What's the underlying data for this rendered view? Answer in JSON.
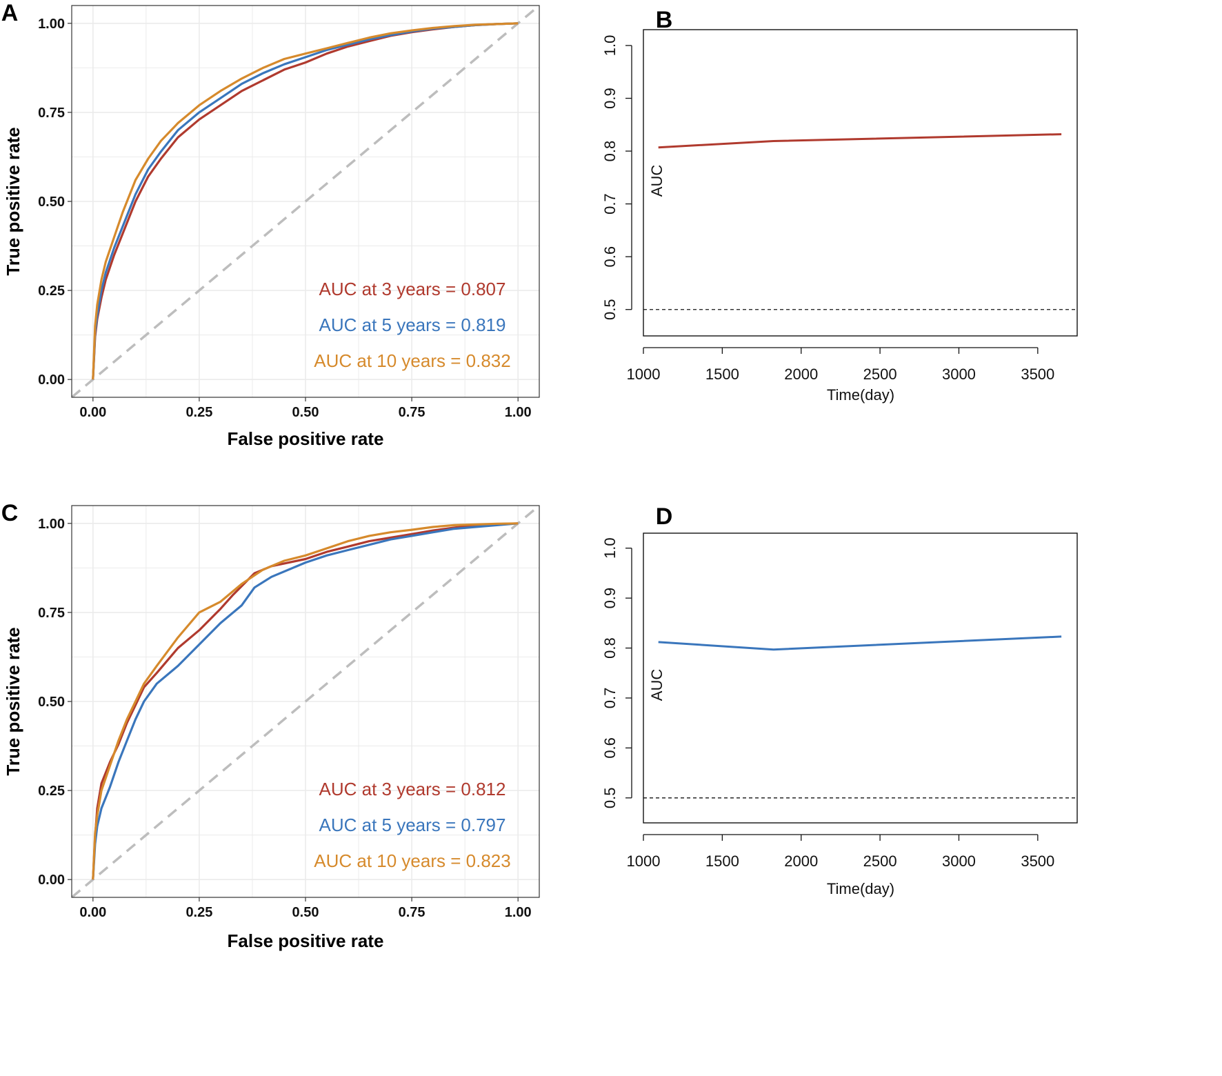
{
  "colors": {
    "y3": "#b03a2e",
    "y5": "#3a76bc",
    "y10": "#d68a2c",
    "diag": "#bdbdbd",
    "grid": "#ebebeb"
  },
  "chart_data": [
    {
      "panel": "A",
      "type": "line",
      "subtype": "roc",
      "xlabel": "False positive rate",
      "ylabel": "True positive rate",
      "xlim": [
        0,
        1
      ],
      "ylim": [
        0,
        1
      ],
      "x_ticks": [
        "0.00",
        "0.25",
        "0.50",
        "0.75",
        "1.00"
      ],
      "y_ticks": [
        "0.00",
        "0.25",
        "0.50",
        "0.75",
        "1.00"
      ],
      "grid": true,
      "reference_line": "diagonal",
      "series": [
        {
          "name": "AUC at 3 years = 0.807",
          "key": "y3",
          "x": [
            0,
            0.005,
            0.01,
            0.02,
            0.03,
            0.05,
            0.07,
            0.1,
            0.13,
            0.16,
            0.2,
            0.25,
            0.3,
            0.35,
            0.4,
            0.45,
            0.5,
            0.55,
            0.6,
            0.65,
            0.7,
            0.75,
            0.8,
            0.85,
            0.9,
            0.95,
            1
          ],
          "y": [
            0,
            0.12,
            0.17,
            0.23,
            0.28,
            0.35,
            0.41,
            0.5,
            0.57,
            0.62,
            0.68,
            0.73,
            0.77,
            0.81,
            0.84,
            0.87,
            0.89,
            0.915,
            0.935,
            0.95,
            0.965,
            0.975,
            0.983,
            0.99,
            0.995,
            0.998,
            1
          ]
        },
        {
          "name": "AUC at 5 years = 0.819",
          "key": "y5",
          "x": [
            0,
            0.005,
            0.01,
            0.02,
            0.03,
            0.05,
            0.07,
            0.1,
            0.13,
            0.16,
            0.2,
            0.25,
            0.3,
            0.35,
            0.4,
            0.45,
            0.5,
            0.55,
            0.6,
            0.65,
            0.7,
            0.75,
            0.8,
            0.85,
            0.9,
            0.95,
            1
          ],
          "y": [
            0,
            0.13,
            0.18,
            0.25,
            0.3,
            0.37,
            0.43,
            0.52,
            0.59,
            0.64,
            0.7,
            0.75,
            0.79,
            0.83,
            0.86,
            0.885,
            0.905,
            0.925,
            0.94,
            0.955,
            0.967,
            0.977,
            0.985,
            0.99,
            0.995,
            0.998,
            1
          ]
        },
        {
          "name": "AUC at 10 years = 0.832",
          "key": "y10",
          "x": [
            0,
            0.005,
            0.01,
            0.02,
            0.03,
            0.05,
            0.07,
            0.1,
            0.13,
            0.16,
            0.2,
            0.25,
            0.3,
            0.35,
            0.4,
            0.45,
            0.5,
            0.55,
            0.6,
            0.65,
            0.7,
            0.75,
            0.8,
            0.85,
            0.9,
            0.95,
            1
          ],
          "y": [
            0,
            0.15,
            0.21,
            0.28,
            0.33,
            0.4,
            0.47,
            0.56,
            0.62,
            0.67,
            0.72,
            0.77,
            0.81,
            0.845,
            0.875,
            0.9,
            0.915,
            0.93,
            0.945,
            0.96,
            0.972,
            0.98,
            0.987,
            0.992,
            0.996,
            0.998,
            1
          ]
        }
      ]
    },
    {
      "panel": "B",
      "type": "line",
      "xlabel": "Time(day)",
      "ylabel": "AUC",
      "xlim": [
        1000,
        3700
      ],
      "ylim": [
        0.45,
        1.03
      ],
      "x_ticks": [
        "1000",
        "1500",
        "2000",
        "2500",
        "3000",
        "3500"
      ],
      "y_ticks": [
        "0.5",
        "0.6",
        "0.7",
        "0.8",
        "0.9",
        "1.0"
      ],
      "reference_line": 0.5,
      "series": [
        {
          "name": "AUC",
          "key": "y3",
          "x": [
            1095,
            1825,
            3650
          ],
          "y": [
            0.807,
            0.819,
            0.832
          ]
        }
      ]
    },
    {
      "panel": "C",
      "type": "line",
      "subtype": "roc",
      "xlabel": "False positive rate",
      "ylabel": "True positive rate",
      "xlim": [
        0,
        1
      ],
      "ylim": [
        0,
        1
      ],
      "x_ticks": [
        "0.00",
        "0.25",
        "0.50",
        "0.75",
        "1.00"
      ],
      "y_ticks": [
        "0.00",
        "0.25",
        "0.50",
        "0.75",
        "1.00"
      ],
      "grid": true,
      "reference_line": "diagonal",
      "series": [
        {
          "name": "AUC at 3 years = 0.812",
          "key": "y3",
          "x": [
            0,
            0.005,
            0.01,
            0.02,
            0.04,
            0.06,
            0.08,
            0.1,
            0.12,
            0.15,
            0.2,
            0.25,
            0.3,
            0.33,
            0.38,
            0.42,
            0.5,
            0.55,
            0.6,
            0.65,
            0.7,
            0.75,
            0.8,
            0.85,
            0.9,
            0.95,
            1
          ],
          "y": [
            0,
            0.12,
            0.2,
            0.27,
            0.33,
            0.38,
            0.44,
            0.49,
            0.54,
            0.58,
            0.65,
            0.7,
            0.76,
            0.8,
            0.86,
            0.88,
            0.9,
            0.92,
            0.935,
            0.95,
            0.96,
            0.97,
            0.98,
            0.988,
            0.995,
            0.998,
            1
          ]
        },
        {
          "name": "AUC at 5 years = 0.797",
          "key": "y5",
          "x": [
            0,
            0.005,
            0.01,
            0.02,
            0.04,
            0.06,
            0.08,
            0.1,
            0.12,
            0.15,
            0.2,
            0.25,
            0.3,
            0.35,
            0.38,
            0.42,
            0.5,
            0.55,
            0.6,
            0.65,
            0.7,
            0.75,
            0.8,
            0.85,
            0.9,
            0.95,
            1
          ],
          "y": [
            0,
            0.1,
            0.15,
            0.2,
            0.26,
            0.33,
            0.39,
            0.45,
            0.5,
            0.55,
            0.6,
            0.66,
            0.72,
            0.77,
            0.82,
            0.85,
            0.89,
            0.91,
            0.925,
            0.94,
            0.955,
            0.965,
            0.975,
            0.985,
            0.99,
            0.995,
            1
          ]
        },
        {
          "name": "AUC at 10 years = 0.823",
          "key": "y10",
          "x": [
            0,
            0.005,
            0.01,
            0.02,
            0.04,
            0.06,
            0.08,
            0.1,
            0.12,
            0.15,
            0.2,
            0.25,
            0.3,
            0.35,
            0.4,
            0.45,
            0.5,
            0.55,
            0.6,
            0.65,
            0.7,
            0.75,
            0.8,
            0.85,
            0.9,
            0.95,
            1
          ],
          "y": [
            0,
            0.13,
            0.18,
            0.25,
            0.32,
            0.39,
            0.45,
            0.5,
            0.55,
            0.6,
            0.68,
            0.75,
            0.78,
            0.83,
            0.87,
            0.895,
            0.91,
            0.93,
            0.95,
            0.965,
            0.975,
            0.982,
            0.99,
            0.995,
            0.997,
            0.999,
            1
          ]
        }
      ]
    },
    {
      "panel": "D",
      "type": "line",
      "xlabel": "Time(day)",
      "ylabel": "AUC",
      "xlim": [
        1000,
        3700
      ],
      "ylim": [
        0.45,
        1.03
      ],
      "x_ticks": [
        "1000",
        "1500",
        "2000",
        "2500",
        "3000",
        "3500"
      ],
      "y_ticks": [
        "0.5",
        "0.6",
        "0.7",
        "0.8",
        "0.9",
        "1.0"
      ],
      "reference_line": 0.5,
      "series": [
        {
          "name": "AUC",
          "key": "y5",
          "x": [
            1095,
            1825,
            3650
          ],
          "y": [
            0.812,
            0.797,
            0.823
          ]
        }
      ]
    }
  ]
}
